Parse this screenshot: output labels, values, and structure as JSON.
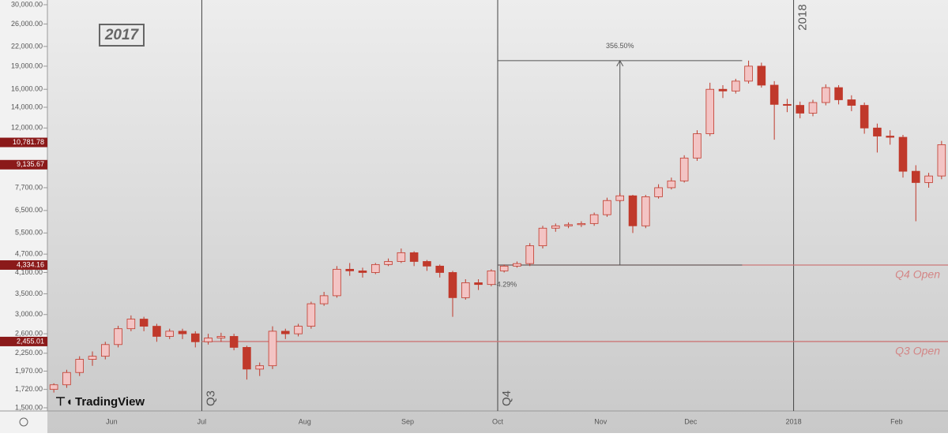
{
  "chart_data": {
    "type": "candlestick",
    "title": "2017",
    "categories": [
      null,
      null,
      null,
      null,
      null,
      "Jun",
      null,
      null,
      null,
      null,
      null,
      null,
      "Jul",
      null,
      null,
      null,
      null,
      null,
      null,
      null,
      "Aug",
      null,
      null,
      null,
      null,
      null,
      null,
      null,
      "Sep",
      null,
      null,
      null,
      null,
      null,
      null,
      "Oct",
      null,
      null,
      null,
      null,
      null,
      null,
      null,
      "Nov",
      null,
      null,
      null,
      null,
      null,
      null,
      "Dec",
      null,
      null,
      null,
      null,
      null,
      null,
      null,
      "2018",
      null,
      null,
      null,
      null,
      null,
      null,
      null,
      "Feb",
      null,
      null,
      null
    ],
    "open": [
      1720,
      1780,
      1950,
      2150,
      2200,
      2400,
      2700,
      2900,
      2750,
      2550,
      2650,
      2600,
      2450,
      2520,
      2550,
      2350,
      2000,
      2050,
      2650,
      2600,
      2750,
      3250,
      3450,
      4200,
      4150,
      4100,
      4350,
      4450,
      4750,
      4450,
      4300,
      4100,
      3400,
      3800,
      3750,
      4150,
      4300,
      4380,
      5000,
      5700,
      5800,
      5850,
      5900,
      6300,
      7000,
      7250,
      5800,
      7200,
      7700,
      8100,
      9600,
      11500,
      16000,
      15800,
      17000,
      19000,
      16500,
      14300,
      14200,
      13400,
      14500,
      16200,
      14800,
      14200,
      12000,
      11300,
      11200,
      8700,
      8000,
      8400
    ],
    "high": [
      1800,
      1990,
      2200,
      2280,
      2450,
      2760,
      2980,
      2950,
      2800,
      2700,
      2700,
      2650,
      2600,
      2620,
      2600,
      2380,
      2100,
      2750,
      2700,
      2800,
      3300,
      3550,
      4300,
      4400,
      4250,
      4400,
      4550,
      4900,
      4800,
      4500,
      4350,
      4150,
      3900,
      3900,
      4200,
      4350,
      4450,
      5100,
      5800,
      5900,
      5950,
      6000,
      6400,
      7150,
      7400,
      7300,
      7300,
      7900,
      8300,
      9800,
      11800,
      16800,
      16500,
      17300,
      19800,
      19500,
      17000,
      14900,
      14600,
      14800,
      16600,
      16500,
      15300,
      14500,
      12400,
      11800,
      11400,
      9100,
      8600,
      10900
    ],
    "low": [
      1680,
      1740,
      1900,
      2050,
      2150,
      2350,
      2650,
      2650,
      2450,
      2500,
      2500,
      2350,
      2400,
      2450,
      2300,
      1850,
      1900,
      2000,
      2500,
      2550,
      2700,
      3200,
      3400,
      4000,
      3950,
      4050,
      4300,
      4400,
      4300,
      4150,
      3950,
      2950,
      3350,
      3600,
      3700,
      4100,
      4250,
      4300,
      4900,
      5550,
      5700,
      5750,
      5800,
      6200,
      6900,
      5500,
      5700,
      7100,
      7600,
      8000,
      9400,
      11300,
      15000,
      15500,
      16700,
      16200,
      11000,
      13500,
      12900,
      13100,
      14200,
      14300,
      13600,
      11500,
      10000,
      10600,
      8300,
      6000,
      7700,
      8200
    ],
    "close": [
      1780,
      1950,
      2150,
      2200,
      2400,
      2700,
      2900,
      2750,
      2550,
      2650,
      2600,
      2450,
      2520,
      2550,
      2350,
      2000,
      2050,
      2650,
      2600,
      2750,
      3250,
      3450,
      4200,
      4150,
      4100,
      4350,
      4450,
      4750,
      4450,
      4300,
      4100,
      3400,
      3800,
      3750,
      4150,
      4300,
      4380,
      5000,
      5700,
      5800,
      5850,
      5900,
      6300,
      7000,
      7250,
      5800,
      7200,
      7700,
      8100,
      9600,
      11500,
      16000,
      15800,
      17000,
      19000,
      16500,
      14300,
      14200,
      13400,
      14500,
      16200,
      14800,
      14200,
      12000,
      11300,
      11200,
      8700,
      8000,
      8400,
      10600
    ],
    "up_color": "#f3c4c4",
    "down_color": "#c0392b",
    "wick_color": "#c0392b",
    "log_scale": true,
    "ylim": [
      1465,
      31070
    ],
    "yticks": [
      {
        "value": 1500,
        "label": "1,500.00"
      },
      {
        "value": 1720,
        "label": "1,720.00"
      },
      {
        "value": 1970,
        "label": "1,970.00"
      },
      {
        "value": 2250,
        "label": "2,250.00"
      },
      {
        "value": 2600,
        "label": "2,600.00"
      },
      {
        "value": 3000,
        "label": "3,000.00"
      },
      {
        "value": 3500,
        "label": "3,500.00"
      },
      {
        "value": 4100,
        "label": "4,100.00"
      },
      {
        "value": 4700,
        "label": "4,700.00"
      },
      {
        "value": 5500,
        "label": "5,500.00"
      },
      {
        "value": 6500,
        "label": "6,500.00"
      },
      {
        "value": 7700,
        "label": "7,700.00"
      },
      {
        "value": 12000,
        "label": "12,000.00"
      },
      {
        "value": 14000,
        "label": "14,000.00"
      },
      {
        "value": 16000,
        "label": "16,000.00"
      },
      {
        "value": 19000,
        "label": "19,000.00"
      },
      {
        "value": 22000,
        "label": "22,000.00"
      },
      {
        "value": 26000,
        "label": "26,000.00"
      },
      {
        "value": 30000,
        "label": "30,000.00"
      }
    ],
    "price_labels": [
      {
        "value": 10781.78,
        "label": "10,781.78"
      },
      {
        "value": 9135.67,
        "label": "9,135.67"
      }
    ],
    "levels": [
      {
        "name": "Q4 Open",
        "value": 4334.16,
        "label": "4,334.16",
        "start": 35
      },
      {
        "name": "Q3 Open",
        "value": 2455.01,
        "label": "2,455.01",
        "start": 12
      }
    ],
    "period_labels": [
      "Q3",
      "Q4",
      "2018"
    ],
    "period_starts": [
      12,
      35,
      58
    ],
    "measure_label": "356.50%",
    "drawdown_label": "-4.29%",
    "logo": "TradingView"
  }
}
